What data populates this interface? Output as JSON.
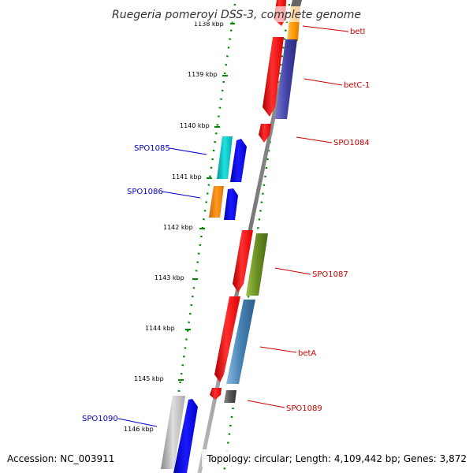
{
  "header": {
    "title": "Ruegeria pomeroyi DSS-3, complete genome"
  },
  "footer": {
    "accession": "Accession: NC_003911",
    "summary": "Topology: circular; Length: 4,109,442 bp; Genes: 3,872"
  },
  "map": {
    "scale_labels": [
      "1138 kbp",
      "1139 kbp",
      "1140 kbp",
      "1141 kbp",
      "1142 kbp",
      "1143 kbp",
      "1144 kbp",
      "1145 kbp",
      "1146 kbp"
    ],
    "genes_right": [
      "betI",
      "betC-1",
      "SPO1084",
      "SPO1087",
      "betA",
      "SPO1089"
    ],
    "genes_left": [
      "SPO1085",
      "SPO1086",
      "SPO1090"
    ]
  },
  "colors": {
    "forward_strand": "#ff0000",
    "reverse_strand": "#0000ff",
    "scale_ticks": "#008800",
    "backbone": "#808080",
    "label_right": "#cc0000",
    "label_left": "#0000cc",
    "betI_feature": "#ff9900",
    "betC1_feature": "#4444aa",
    "SPO1087_feature": "#6b8e23",
    "betA_feature": "#4682b4",
    "SPO1089_feature": "#555555",
    "SPO1085_feature": "#00cccc",
    "SPO1086_feature": "#ff8800",
    "SPO1090_feature": "#aaaaaa"
  }
}
